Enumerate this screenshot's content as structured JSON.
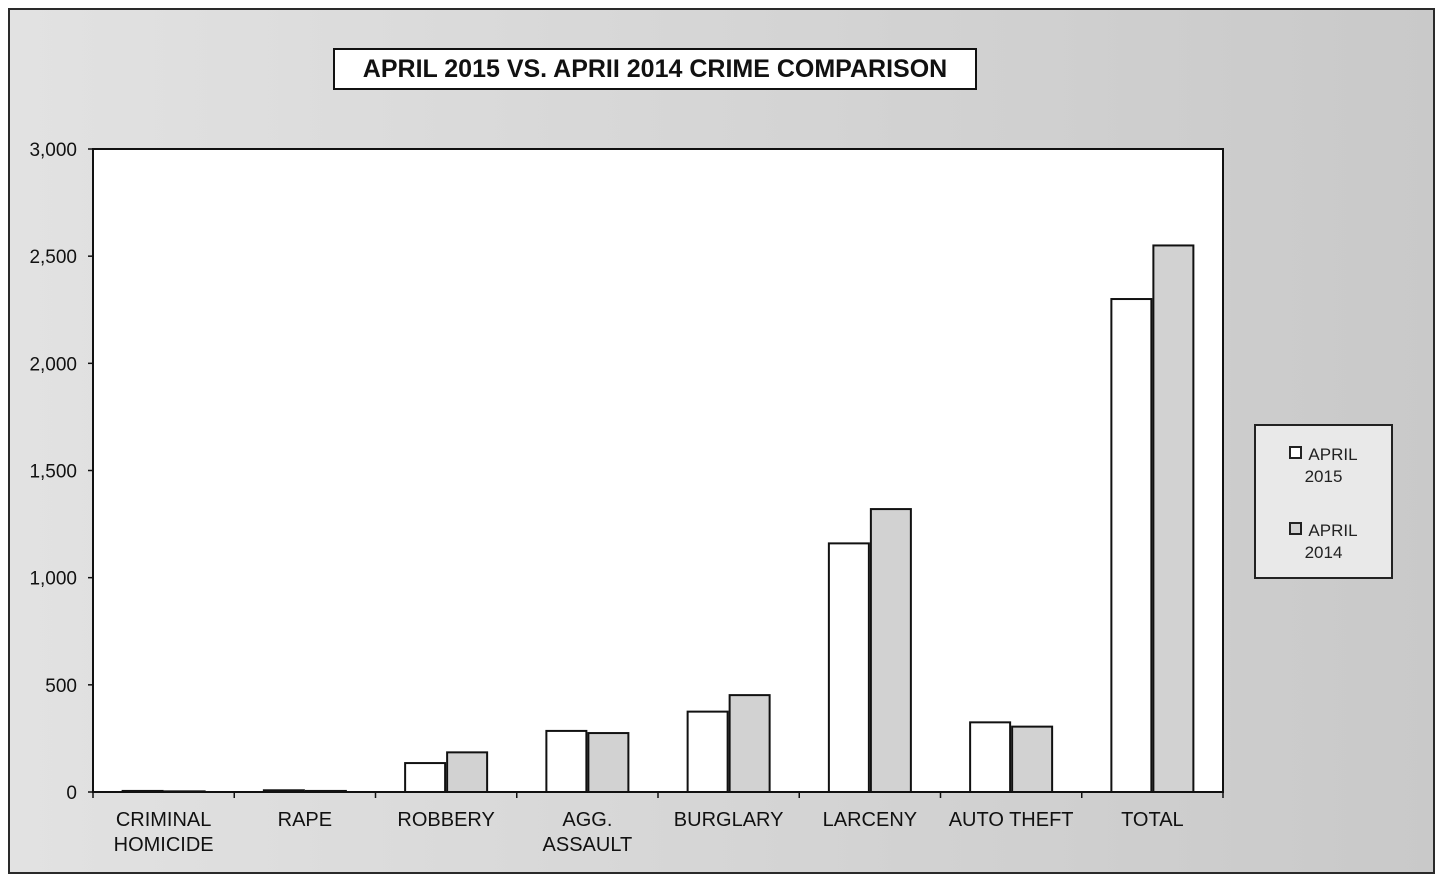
{
  "chart_data": {
    "type": "bar",
    "title": "APRIL 2015 VS. APRII 2014 CRIME COMPARISON",
    "xlabel": "",
    "ylabel": "",
    "categories": [
      "CRIMINAL\nHOMICIDE",
      "RAPE",
      "ROBBERY",
      "AGG.\nASSAULT",
      "BURGLARY",
      "LARCENY",
      "AUTO THEFT",
      "TOTAL"
    ],
    "series": [
      {
        "name": "APRIL 2015",
        "values": [
          5,
          8,
          135,
          285,
          375,
          1160,
          325,
          2300
        ],
        "color": "#ffffff"
      },
      {
        "name": "APRIL 2014",
        "values": [
          3,
          5,
          185,
          275,
          452,
          1320,
          305,
          2550
        ],
        "color": "#d2d2d2"
      }
    ],
    "ylim": [
      0,
      3000
    ],
    "yticks": [
      "0",
      "500",
      "1,000",
      "1,500",
      "2,000",
      "2,500",
      "3,000"
    ],
    "ytick_values": [
      0,
      500,
      1000,
      1500,
      2000,
      2500,
      3000
    ],
    "grid": false,
    "legend_position": "right"
  },
  "legend": {
    "item1": {
      "line1": "APRIL",
      "line2": "2015"
    },
    "item2": {
      "line1": "APRIL",
      "line2": "2014"
    }
  }
}
